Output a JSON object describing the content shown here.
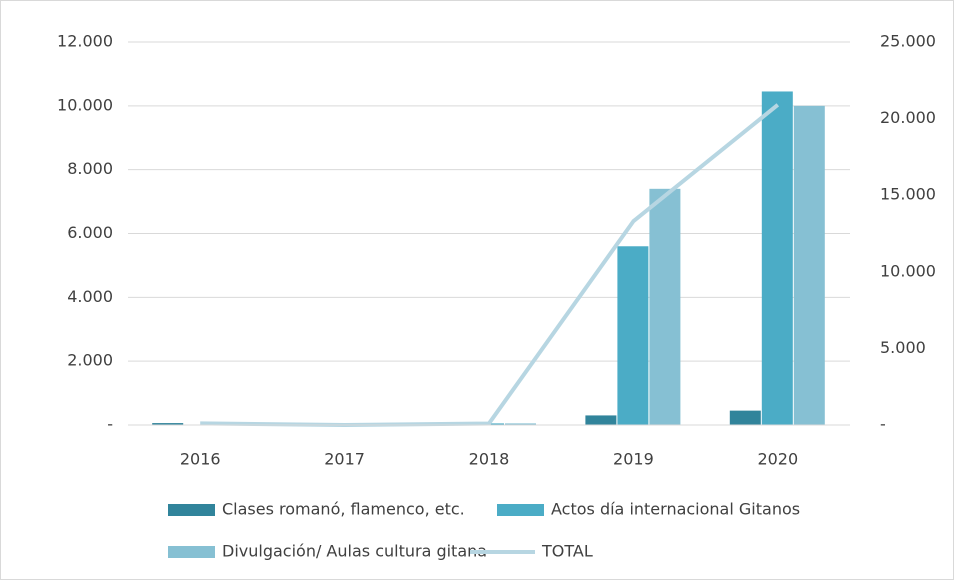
{
  "chart_data": {
    "type": "bar_line",
    "categories": [
      "2016",
      "2017",
      "2018",
      "2019",
      "2020"
    ],
    "series": [
      {
        "name": "Clases romanó, flamenco, etc.",
        "color": "#31849b",
        "type": "bar",
        "values": [
          60,
          0,
          0,
          300,
          450
        ]
      },
      {
        "name": "Actos día internacional Gitanos",
        "color": "#4bacc6",
        "type": "bar",
        "values": [
          0,
          0,
          50,
          5600,
          10450
        ]
      },
      {
        "name": "Divulgación/ Aulas cultura gitana",
        "color": "#86c0d3",
        "type": "bar",
        "values": [
          50,
          0,
          50,
          7400,
          10000
        ]
      },
      {
        "name": "TOTAL",
        "color": "#b7d6e2",
        "type": "line",
        "axis": "y2",
        "values": [
          110,
          0,
          100,
          13300,
          20900
        ]
      }
    ],
    "ylim": [
      0,
      12000
    ],
    "yticks": [
      {
        "value": 0,
        "label": "-"
      },
      {
        "value": 2000,
        "label": "2.000"
      },
      {
        "value": 4000,
        "label": "4.000"
      },
      {
        "value": 6000,
        "label": "6.000"
      },
      {
        "value": 8000,
        "label": "8.000"
      },
      {
        "value": 10000,
        "label": "10.000"
      },
      {
        "value": 12000,
        "label": "12.000"
      }
    ],
    "y2lim": [
      0,
      25000
    ],
    "y2ticks": [
      {
        "value": 0,
        "label": "-"
      },
      {
        "value": 5000,
        "label": "5.000"
      },
      {
        "value": 10000,
        "label": "10.000"
      },
      {
        "value": 15000,
        "label": "15.000"
      },
      {
        "value": 20000,
        "label": "20.000"
      },
      {
        "value": 25000,
        "label": "25.000"
      }
    ],
    "grid": true
  }
}
